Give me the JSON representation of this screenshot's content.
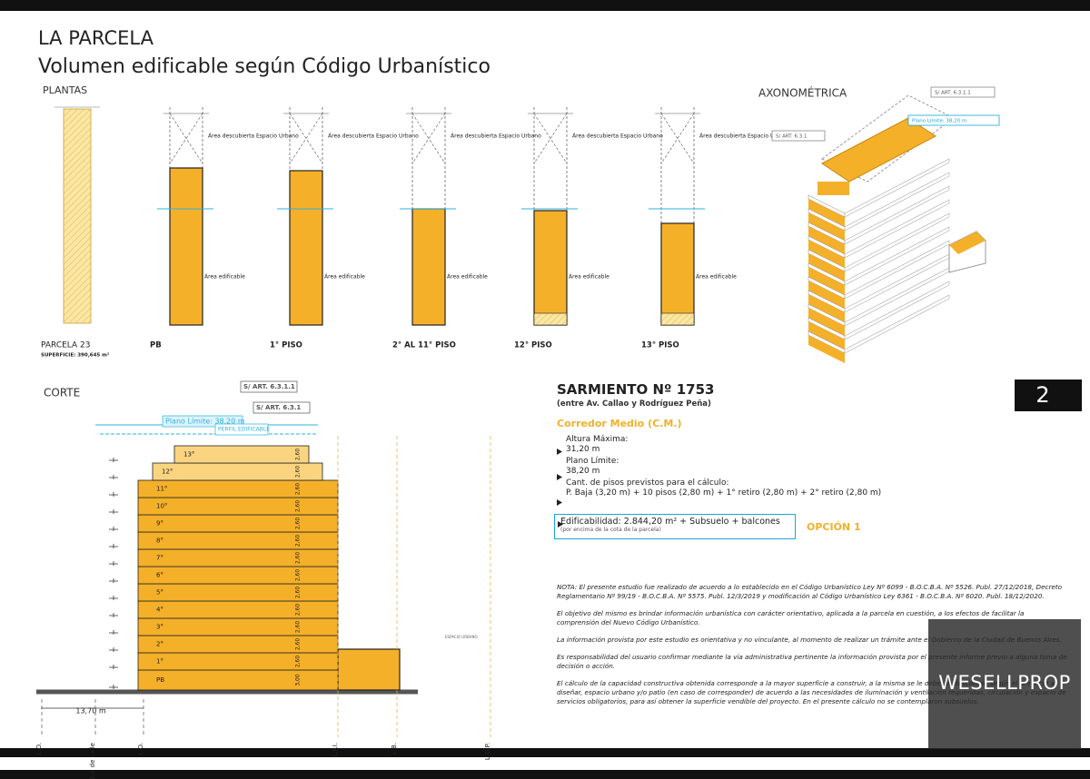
{
  "header": {
    "title": "LA PARCELA",
    "subtitle": "Volumen edificable según Código Urbanístico"
  },
  "plantas": {
    "label": "PLANTAS",
    "open_area": "Área descubierta Espacio Urbano",
    "built_area": "Área edificable",
    "parcel": {
      "label": "PARCELA 23",
      "surface": "SUPERFICIE: 390,645 m²"
    },
    "panels": [
      "PB",
      "1° PISO",
      "2° AL 11° PISO",
      "12° PISO",
      "13° PISO"
    ]
  },
  "axonometric": {
    "label": "AXONOMÉTRICA",
    "tags": [
      "S/ ART. 6.3.1.1",
      "Plano Límite: 38,20 m",
      "S/ ART. 6.3.1"
    ]
  },
  "corte": {
    "label": "CORTE",
    "tags": [
      "S/ ART. 6.3.1.1",
      "S/ ART. 6.3.1",
      "Plano Límite: 38,20 m",
      "PERFIL EDIFICABLE"
    ],
    "floors": [
      "PB",
      "1°",
      "2°",
      "3°",
      "4°",
      "5°",
      "6°",
      "7°",
      "8°",
      "9°",
      "10°",
      "11°",
      "12°",
      "13°"
    ],
    "heights": [
      "3,00",
      "2,60",
      "2,60",
      "2,60",
      "2,60",
      "2,60",
      "2,60",
      "2,60",
      "2,60",
      "2,60",
      "2,60",
      "2,60",
      "2,60",
      "2,60"
    ],
    "street_width": "13,70 m",
    "lines": [
      "L.O.",
      "Eje de calle",
      "L.O.",
      "L.F.I.",
      "L.B.",
      "L.D.P."
    ],
    "annex": "ESPACIO URBANO"
  },
  "page_number": "2",
  "info": {
    "address": "SARMIENTO Nº 1753",
    "between": "(entre Av. Callao y Rodríguez Peña)",
    "district": "Corredor Medio (C.M.)",
    "items": [
      {
        "label": "Altura Máxima:",
        "value": "31,20 m"
      },
      {
        "label": "Plano Límite:",
        "value": "38,20 m"
      },
      {
        "label": "Cant. de pisos previstos para el cálculo:",
        "value": "P. Baja (3,20 m) + 10 pisos (2,80 m) + 1° retiro (2,80 m) + 2° retiro (2,80 m)"
      }
    ],
    "edificabilidad": "Edificabilidad: 2.844,20 m² + Subsuelo + balcones",
    "edificabilidad_note": "(por encima de la cota de la parcela)",
    "option": "OPCIÓN 1"
  },
  "notes": [
    "NOTA: El presente estudio fue realizado de acuerdo a lo establecido en el Código Urbanístico Ley Nº 6099 - B.O.C.B.A. Nº 5526. Publ. 27/12/2018, Decreto Reglamentario Nº 99/19 - B.O.C.B.A. Nº 5575. Publ. 12/3/2019 y modificación al Código Urbanístico Ley 6361 - B.O.C.B.A. Nº 6020. Publ. 18/12/2020.",
    "El objetivo del mismo es brindar información urbanística con carácter orientativo, aplicada a la parcela en cuestión, a los efectos de facilitar la comprensión del Nuevo Código Urbanístico.",
    "La información provista por este estudio es orientativa y no vinculante, al momento de realizar un trámite ante el Gobierno de la Ciudad de Buenos Aires.",
    "Es responsabilidad del usuario confirmar mediante la vía administrativa pertinente la información provista por el presente informe previo a alguna toma de decisión o acción.",
    "El cálculo de la capacidad constructiva obtenida corresponde a la mayor superficie a construir, a la misma se le deberán descontar, según el proyecto a diseñar, espacio urbano y/o patio (en caso de corresponder) de acuerdo a las necesidades de iluminación y ventilación requeridas, circulación y espacio de servicios obligatorios, para así obtener la superficie vendible del proyecto. En el presente cálculo no se contemplaron subsuelos."
  ],
  "watermark": "WESELLPROP"
}
